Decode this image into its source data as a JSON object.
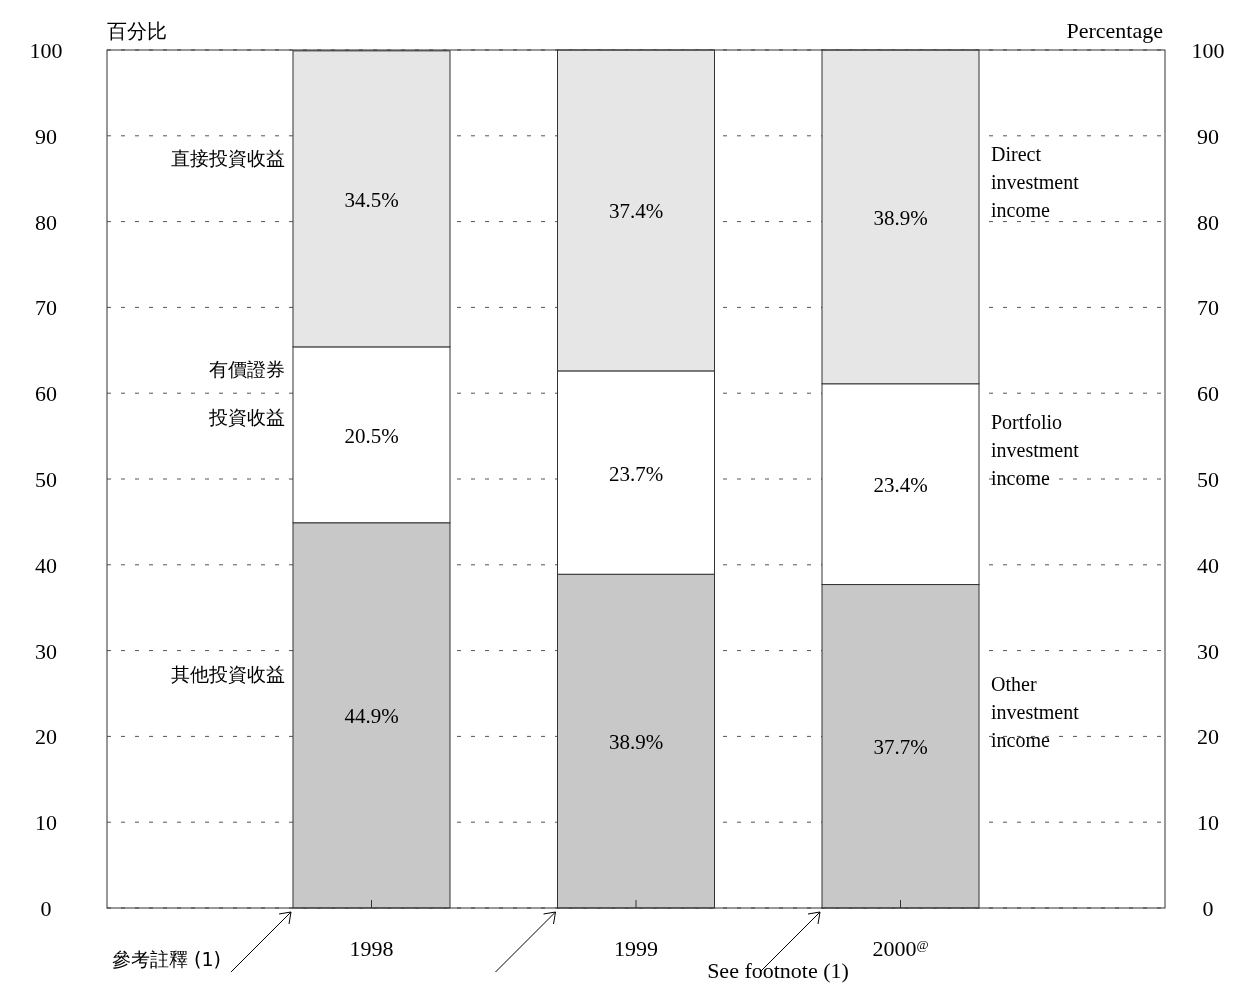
{
  "chart_data": {
    "type": "bar",
    "stacked": true,
    "ylabel": "百分比",
    "y2label": "Percentage",
    "categories": [
      "1998",
      "1999",
      "2000$^{@}$"
    ],
    "series": [
      {
        "name": "其他投資收益",
        "color": "#c8c8c8",
        "values": [
          44.9,
          38.9,
          37.7
        ],
        "value_labels": [
          "44.9%",
          "38.9%",
          "37.7%"
        ]
      },
      {
        "name": "有價證券投資收益",
        "color": "#ffffff",
        "values": [
          20.5,
          23.7,
          23.4
        ],
        "value_labels": [
          "20.5%",
          "23.7%",
          "23.4%"
        ]
      },
      {
        "name": "直接投資收益",
        "color": "#e6e6e6",
        "values": [
          34.5,
          37.4,
          38.9
        ],
        "value_labels": [
          "34.5%",
          "37.4%",
          "38.9%"
        ]
      }
    ],
    "ylim": [
      0,
      100
    ],
    "yticks": [
      0,
      10,
      20,
      30,
      40,
      50,
      60,
      70,
      80,
      90,
      100
    ],
    "y2lim": [
      0,
      100
    ],
    "y2ticks": [
      0,
      10,
      20,
      30,
      40,
      50,
      60,
      70,
      80,
      90,
      100
    ],
    "grid": "y",
    "annotations": [
      "Other\ninvestment\nincome",
      "Portfolio\ninvestment\nincome",
      "Direct\ninvestment\nincome",
      "參考註釋 (1)",
      "See footnote (1)"
    ]
  }
}
